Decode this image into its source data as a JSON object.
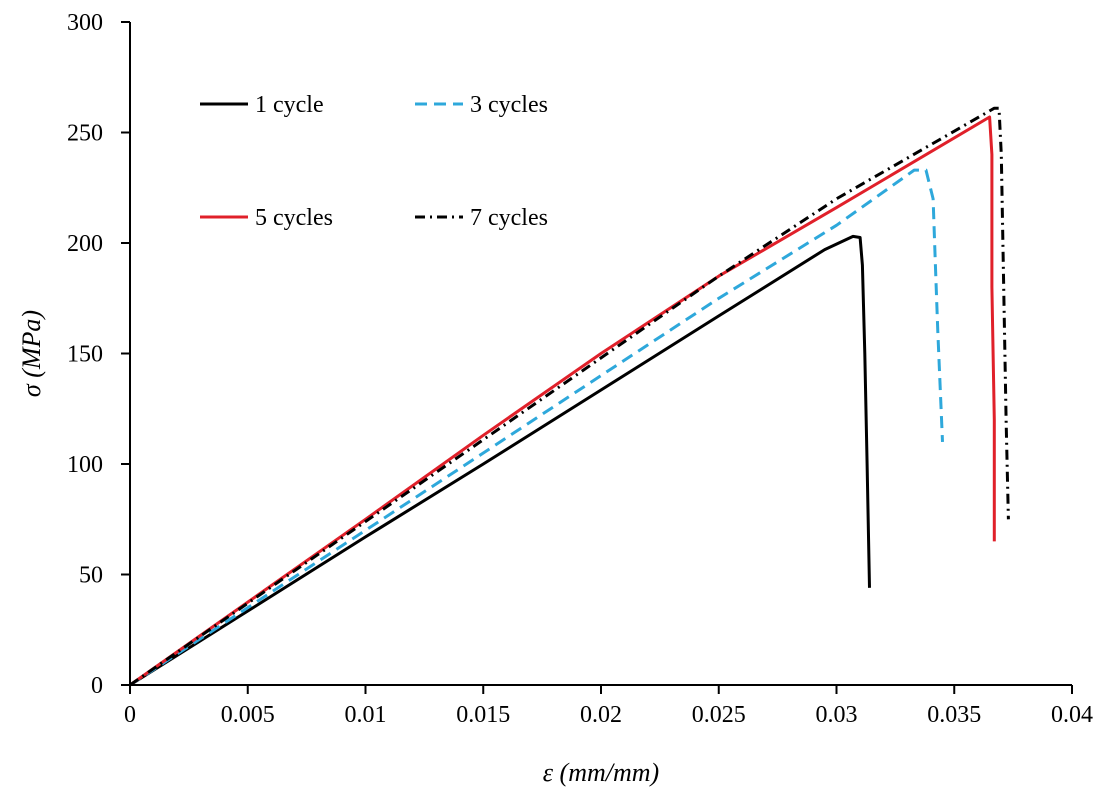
{
  "chart_data": {
    "type": "line",
    "xlabel": "ε (mm/mm)",
    "ylabel": "σ (MPa)",
    "xlim": [
      0,
      0.04
    ],
    "ylim": [
      0,
      300
    ],
    "xticks": [
      0,
      0.005,
      0.01,
      0.015,
      0.02,
      0.025,
      0.03,
      0.035,
      0.04
    ],
    "xtick_labels": [
      "0",
      "0.005",
      "0.01",
      "0.015",
      "0.02",
      "0.025",
      "0.03",
      "0.035",
      "0.04"
    ],
    "yticks": [
      0,
      50,
      100,
      150,
      200,
      250,
      300
    ],
    "ytick_labels": [
      "0",
      "50",
      "100",
      "150",
      "200",
      "250",
      "300"
    ],
    "grid": false,
    "legend": "top-left, two columns",
    "series": [
      {
        "name": "1 cycle",
        "color": "#000000",
        "dash": "solid",
        "points": [
          [
            0,
            0
          ],
          [
            0.005,
            33.5
          ],
          [
            0.01,
            67
          ],
          [
            0.015,
            100
          ],
          [
            0.02,
            133.5
          ],
          [
            0.025,
            167
          ],
          [
            0.0295,
            197
          ],
          [
            0.0307,
            203
          ],
          [
            0.031,
            202.5
          ],
          [
            0.0311,
            190
          ],
          [
            0.0312,
            150
          ],
          [
            0.0313,
            100
          ],
          [
            0.0314,
            44
          ]
        ]
      },
      {
        "name": "3 cycles",
        "color": "#2ea8db",
        "dash": "dashed",
        "points": [
          [
            0,
            0
          ],
          [
            0.005,
            35
          ],
          [
            0.01,
            70
          ],
          [
            0.015,
            105
          ],
          [
            0.02,
            140
          ],
          [
            0.025,
            175
          ],
          [
            0.03,
            208
          ],
          [
            0.0333,
            233
          ],
          [
            0.0338,
            233
          ],
          [
            0.0341,
            220
          ],
          [
            0.0342,
            190
          ],
          [
            0.0343,
            160
          ],
          [
            0.0345,
            110
          ]
        ]
      },
      {
        "name": "5 cycles",
        "color": "#e0202a",
        "dash": "solid",
        "points": [
          [
            0,
            0
          ],
          [
            0.005,
            37.5
          ],
          [
            0.01,
            75
          ],
          [
            0.015,
            113
          ],
          [
            0.02,
            150
          ],
          [
            0.025,
            185
          ],
          [
            0.03,
            216
          ],
          [
            0.0365,
            257
          ],
          [
            0.0366,
            240
          ],
          [
            0.0366,
            180
          ],
          [
            0.0367,
            120
          ],
          [
            0.0367,
            65
          ]
        ]
      },
      {
        "name": "7 cycles",
        "color": "#000000",
        "dash": "dashdot",
        "points": [
          [
            0,
            0
          ],
          [
            0.005,
            37
          ],
          [
            0.01,
            74
          ],
          [
            0.015,
            111
          ],
          [
            0.02,
            148
          ],
          [
            0.025,
            185
          ],
          [
            0.03,
            220
          ],
          [
            0.0367,
            261
          ],
          [
            0.0369,
            261
          ],
          [
            0.037,
            240
          ],
          [
            0.0371,
            180
          ],
          [
            0.0372,
            120
          ],
          [
            0.0373,
            75
          ]
        ]
      }
    ]
  }
}
